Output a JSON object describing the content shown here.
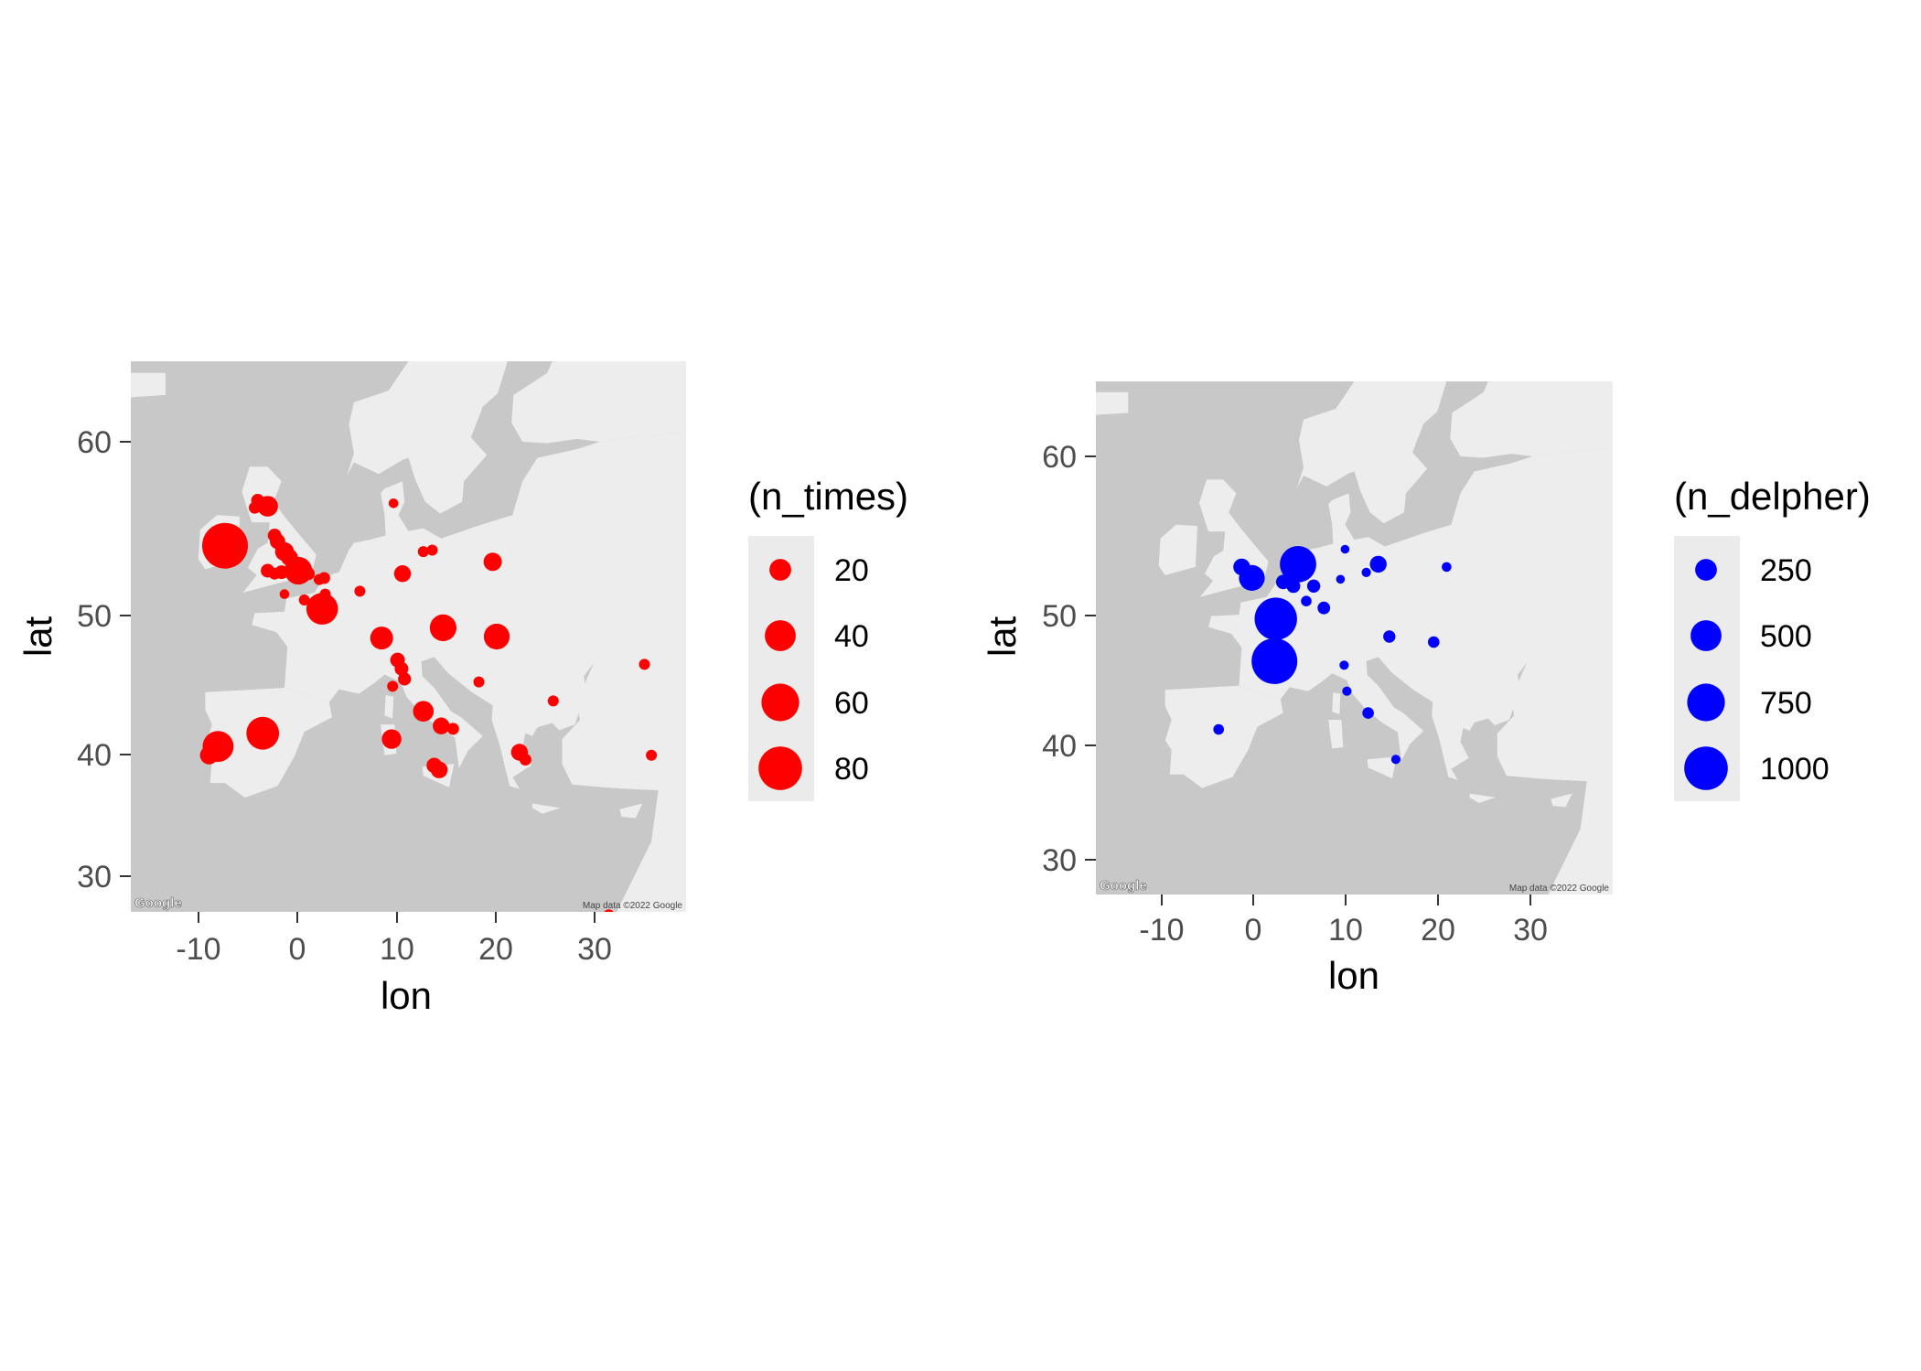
{
  "colors": {
    "series1": "#ff0000",
    "series2": "#0000ff",
    "sea": "#c8c8c8",
    "land": "#ededed",
    "legend_bg": "#ebebeb"
  },
  "map": {
    "logo": "Google",
    "attribution": "Map data ©2022 Google"
  },
  "chart_data": [
    {
      "type": "scatter",
      "subtype": "bubble map",
      "xlabel": "lon",
      "ylabel": "lat",
      "xlim": [
        -17,
        39
      ],
      "ylim": [
        28.2,
        65.8
      ],
      "xticks": [
        "-10",
        "0",
        "10",
        "20",
        "30"
      ],
      "yticks": [
        "30",
        "40",
        "50",
        "60"
      ],
      "xtick_values": [
        -10,
        0,
        10,
        20,
        30
      ],
      "ytick_values": [
        30,
        40,
        50,
        60
      ],
      "size_max": 88,
      "legend": {
        "title": "(n_times)",
        "placement": "right",
        "entries": [
          {
            "label": "20",
            "value": 20
          },
          {
            "label": "40",
            "value": 40
          },
          {
            "label": "60",
            "value": 60
          },
          {
            "label": "80",
            "value": 80
          }
        ]
      },
      "points": [
        {
          "lon": -7.5,
          "lat": 53.2,
          "size": 88
        },
        {
          "lon": -8.2,
          "lat": 39.5,
          "size": 40
        },
        {
          "lon": -9.1,
          "lat": 38.9,
          "size": 14
        },
        {
          "lon": -3.7,
          "lat": 40.4,
          "size": 45
        },
        {
          "lon": 2.3,
          "lat": 48.9,
          "size": 42
        },
        {
          "lon": -3.2,
          "lat": 55.9,
          "size": 18
        },
        {
          "lon": -4.2,
          "lat": 56.3,
          "size": 7
        },
        {
          "lon": -4.5,
          "lat": 55.8,
          "size": 6
        },
        {
          "lon": -2.5,
          "lat": 53.9,
          "size": 8
        },
        {
          "lon": -2.2,
          "lat": 53.5,
          "size": 10
        },
        {
          "lon": -1.5,
          "lat": 52.8,
          "size": 15
        },
        {
          "lon": -1.0,
          "lat": 52.4,
          "size": 12
        },
        {
          "lon": -0.1,
          "lat": 51.5,
          "size": 32
        },
        {
          "lon": -1.8,
          "lat": 51.4,
          "size": 8
        },
        {
          "lon": -3.2,
          "lat": 51.5,
          "size": 8
        },
        {
          "lon": -2.5,
          "lat": 51.3,
          "size": 6
        },
        {
          "lon": 0.9,
          "lat": 51.3,
          "size": 7
        },
        {
          "lon": 2.5,
          "lat": 51.0,
          "size": 6
        },
        {
          "lon": 2.0,
          "lat": 50.9,
          "size": 5
        },
        {
          "lon": 2.6,
          "lat": 49.9,
          "size": 5
        },
        {
          "lon": 2.5,
          "lat": 49.1,
          "size": 5
        },
        {
          "lon": 0.5,
          "lat": 49.5,
          "size": 5
        },
        {
          "lon": -1.5,
          "lat": 49.9,
          "size": 4
        },
        {
          "lon": 6.1,
          "lat": 50.1,
          "size": 5
        },
        {
          "lon": 10.4,
          "lat": 51.3,
          "size": 12
        },
        {
          "lon": 9.5,
          "lat": 56.1,
          "size": 4
        },
        {
          "lon": 12.5,
          "lat": 52.8,
          "size": 5
        },
        {
          "lon": 13.4,
          "lat": 52.9,
          "size": 5
        },
        {
          "lon": 19.5,
          "lat": 52.1,
          "size": 14
        },
        {
          "lon": 8.3,
          "lat": 46.9,
          "size": 22
        },
        {
          "lon": 14.5,
          "lat": 47.6,
          "size": 30
        },
        {
          "lon": 19.9,
          "lat": 47.0,
          "size": 28
        },
        {
          "lon": 9.9,
          "lat": 45.4,
          "size": 9
        },
        {
          "lon": 10.3,
          "lat": 44.8,
          "size": 8
        },
        {
          "lon": 10.6,
          "lat": 44.1,
          "size": 7
        },
        {
          "lon": 9.4,
          "lat": 43.6,
          "size": 5
        },
        {
          "lon": 9.3,
          "lat": 40.0,
          "size": 16
        },
        {
          "lon": 12.5,
          "lat": 41.9,
          "size": 18
        },
        {
          "lon": 14.3,
          "lat": 40.9,
          "size": 12
        },
        {
          "lon": 15.5,
          "lat": 40.7,
          "size": 6
        },
        {
          "lon": 13.6,
          "lat": 38.2,
          "size": 10
        },
        {
          "lon": 14.1,
          "lat": 37.9,
          "size": 12
        },
        {
          "lon": 18.1,
          "lat": 43.9,
          "size": 5
        },
        {
          "lon": 22.2,
          "lat": 39.1,
          "size": 12
        },
        {
          "lon": 22.8,
          "lat": 38.6,
          "size": 6
        },
        {
          "lon": 25.6,
          "lat": 42.6,
          "size": 5
        },
        {
          "lon": 34.8,
          "lat": 45.1,
          "size": 5
        },
        {
          "lon": 35.5,
          "lat": 38.9,
          "size": 5
        },
        {
          "lon": 31.2,
          "lat": 28.0,
          "size": 5
        }
      ]
    },
    {
      "type": "scatter",
      "subtype": "bubble map",
      "xlabel": "lon",
      "ylabel": "lat",
      "xlim": [
        -17,
        39
      ],
      "ylim": [
        28.2,
        65.8
      ],
      "xticks": [
        "-10",
        "0",
        "10",
        "20",
        "30"
      ],
      "yticks": [
        "30",
        "40",
        "50",
        "60"
      ],
      "xtick_values": [
        -10,
        0,
        10,
        20,
        30
      ],
      "ytick_values": [
        30,
        40,
        50,
        60
      ],
      "size_max": 1100,
      "legend": {
        "title": "(n_delpher)",
        "placement": "right",
        "entries": [
          {
            "label": "250",
            "value": 250
          },
          {
            "label": "500",
            "value": 500
          },
          {
            "label": "750",
            "value": 750
          },
          {
            "label": "1000",
            "value": 1000
          }
        ]
      },
      "points": [
        {
          "lon": 2.35,
          "lat": 45.3,
          "size": 1100
        },
        {
          "lon": 2.5,
          "lat": 48.4,
          "size": 950
        },
        {
          "lon": 4.9,
          "lat": 52.4,
          "size": 700
        },
        {
          "lon": -0.1,
          "lat": 51.4,
          "size": 350
        },
        {
          "lon": -1.2,
          "lat": 52.2,
          "size": 150
        },
        {
          "lon": 3.3,
          "lat": 51.1,
          "size": 110
        },
        {
          "lon": 4.4,
          "lat": 50.8,
          "size": 100
        },
        {
          "lon": 6.6,
          "lat": 50.8,
          "size": 90
        },
        {
          "lon": 5.8,
          "lat": 49.7,
          "size": 60
        },
        {
          "lon": 7.7,
          "lat": 49.2,
          "size": 85
        },
        {
          "lon": 9.5,
          "lat": 51.3,
          "size": 40
        },
        {
          "lon": 10.0,
          "lat": 53.5,
          "size": 40
        },
        {
          "lon": 12.3,
          "lat": 51.8,
          "size": 45
        },
        {
          "lon": 13.6,
          "lat": 52.4,
          "size": 150
        },
        {
          "lon": 21.0,
          "lat": 52.2,
          "size": 50
        },
        {
          "lon": 14.8,
          "lat": 47.1,
          "size": 80
        },
        {
          "lon": 19.6,
          "lat": 46.7,
          "size": 70
        },
        {
          "lon": 9.9,
          "lat": 45.0,
          "size": 45
        },
        {
          "lon": 10.2,
          "lat": 43.1,
          "size": 45
        },
        {
          "lon": 12.5,
          "lat": 41.5,
          "size": 70
        },
        {
          "lon": 15.5,
          "lat": 38.1,
          "size": 45
        },
        {
          "lon": -3.7,
          "lat": 40.3,
          "size": 60
        }
      ]
    }
  ]
}
